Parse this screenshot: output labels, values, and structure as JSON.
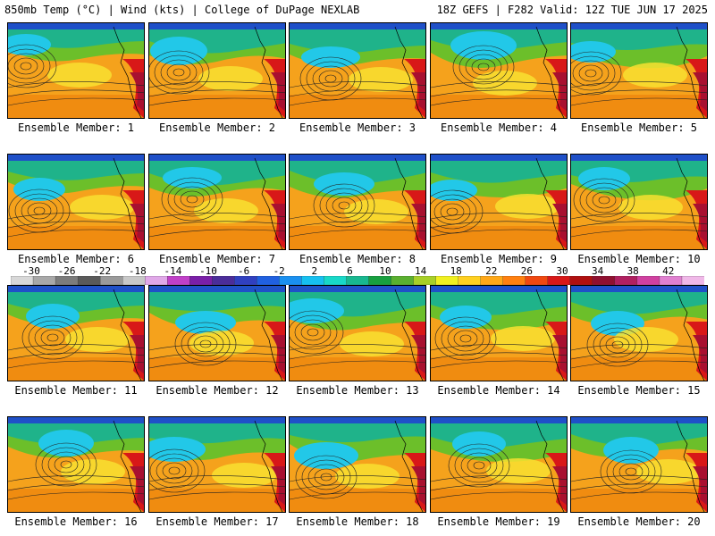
{
  "header": {
    "left": "850mb Temp (°C) | Wind (kts) | College of DuPage NEXLAB",
    "right": "18Z GEFS | F282 Valid: 12Z TUE JUN 17 2025"
  },
  "panels": [
    "Ensemble Member: 1",
    "Ensemble Member: 2",
    "Ensemble Member: 3",
    "Ensemble Member: 4",
    "Ensemble Member: 5",
    "Ensemble Member: 6",
    "Ensemble Member: 7",
    "Ensemble Member: 8",
    "Ensemble Member: 9",
    "Ensemble Member: 10",
    "Ensemble Member: 11",
    "Ensemble Member: 12",
    "Ensemble Member: 13",
    "Ensemble Member: 14",
    "Ensemble Member: 15",
    "Ensemble Member: 16",
    "Ensemble Member: 17",
    "Ensemble Member: 18",
    "Ensemble Member: 19",
    "Ensemble Member: 20"
  ],
  "colorbar": {
    "tick_labels": [
      "-30",
      "-26",
      "-22",
      "-18",
      "-14",
      "-10",
      "-6",
      "-2",
      "2",
      "6",
      "10",
      "14",
      "18",
      "22",
      "26",
      "30",
      "34",
      "38",
      "42"
    ],
    "colors": [
      "#d8d8d8",
      "#a8a8a8",
      "#7c7c7c",
      "#5a5a5a",
      "#9a9a9a",
      "#c8c8c8",
      "#e0a8e8",
      "#c040c8",
      "#7a1fa8",
      "#4b2d9a",
      "#3040c0",
      "#2060e0",
      "#1a90f0",
      "#16c0f0",
      "#18d8c8",
      "#18b890",
      "#18a040",
      "#5ab030",
      "#a8d028",
      "#f0f020",
      "#ffd020",
      "#ffa818",
      "#ff8010",
      "#f04810",
      "#d81818",
      "#b01010",
      "#901030",
      "#b02060",
      "#d040a0",
      "#e080d0",
      "#f0b8e8"
    ]
  }
}
